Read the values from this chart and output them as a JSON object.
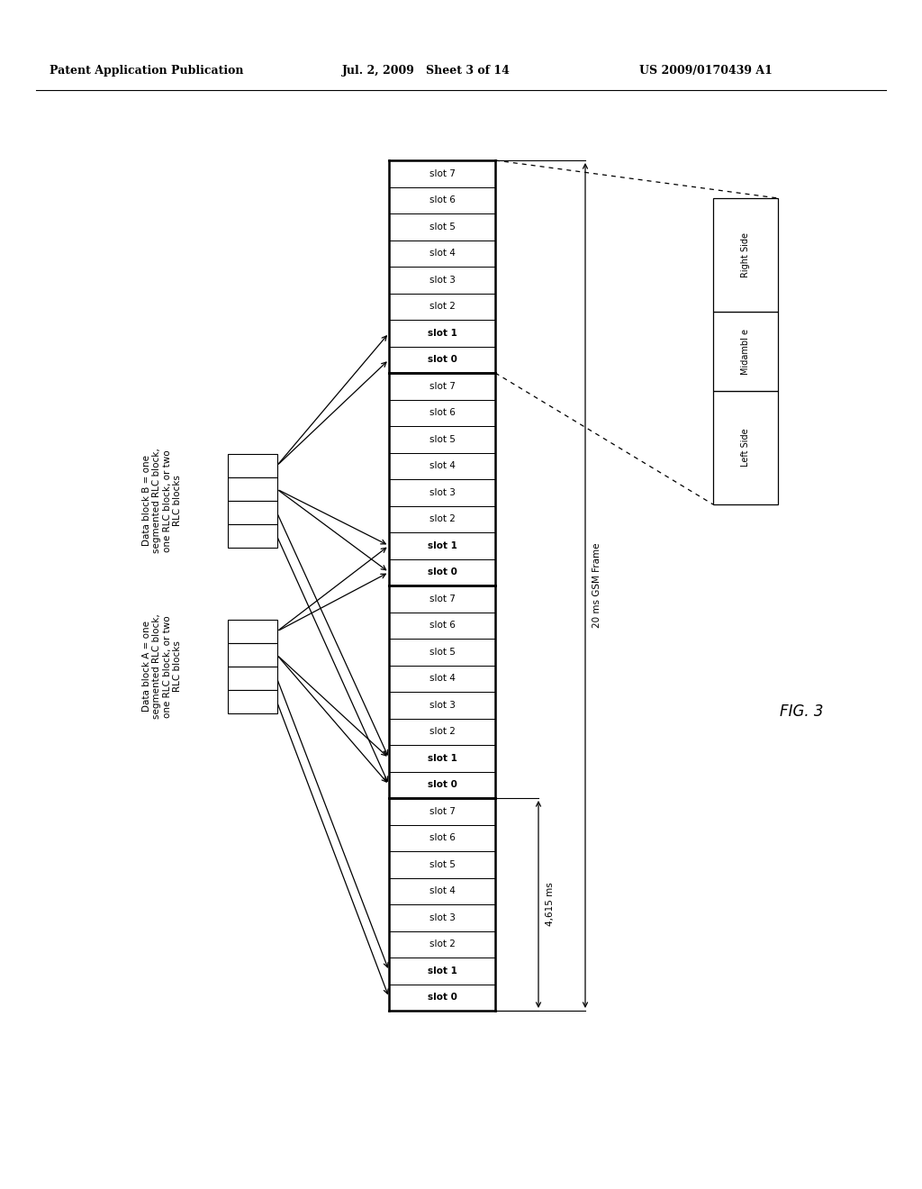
{
  "header_left": "Patent Application Publication",
  "header_mid": "Jul. 2, 2009   Sheet 3 of 14",
  "header_right": "US 2009/0170439 A1",
  "fig_label": "FIG. 3",
  "slot_labels": [
    "slot 7",
    "slot 6",
    "slot 5",
    "slot 4",
    "slot 3",
    "slot 2",
    "slot 1",
    "slot 0",
    "slot 7",
    "slot 6",
    "slot 5",
    "slot 4",
    "slot 3",
    "slot 2",
    "slot 1",
    "slot 0",
    "slot 7",
    "slot 6",
    "slot 5",
    "slot 4",
    "slot 3",
    "slot 2",
    "slot 1",
    "slot 0",
    "slot 7",
    "slot 6",
    "slot 5",
    "slot 4",
    "slot 3",
    "slot 2",
    "slot 1",
    "slot 0"
  ],
  "block_b_label": "Data block B = one\nsegmented RLC block,\none RLC block, or two\nRLC blocks",
  "block_a_label": "Data block A = one\nsegmented RLC block,\none RLC block, or two\nRLC blocks",
  "dim_label_4615": "4,615 ms",
  "dim_label_20ms": "20 ms GSM Frame",
  "burst_left": "Left Side",
  "burst_mid": "Midambl e",
  "burst_right": "Right Side",
  "bg_color": "#ffffff",
  "line_color": "#000000",
  "font_size_header": 9,
  "font_size_slot": 7.5,
  "font_size_label": 7.5,
  "font_size_dim": 7.5,
  "font_size_fig": 12,
  "font_size_burst": 7
}
